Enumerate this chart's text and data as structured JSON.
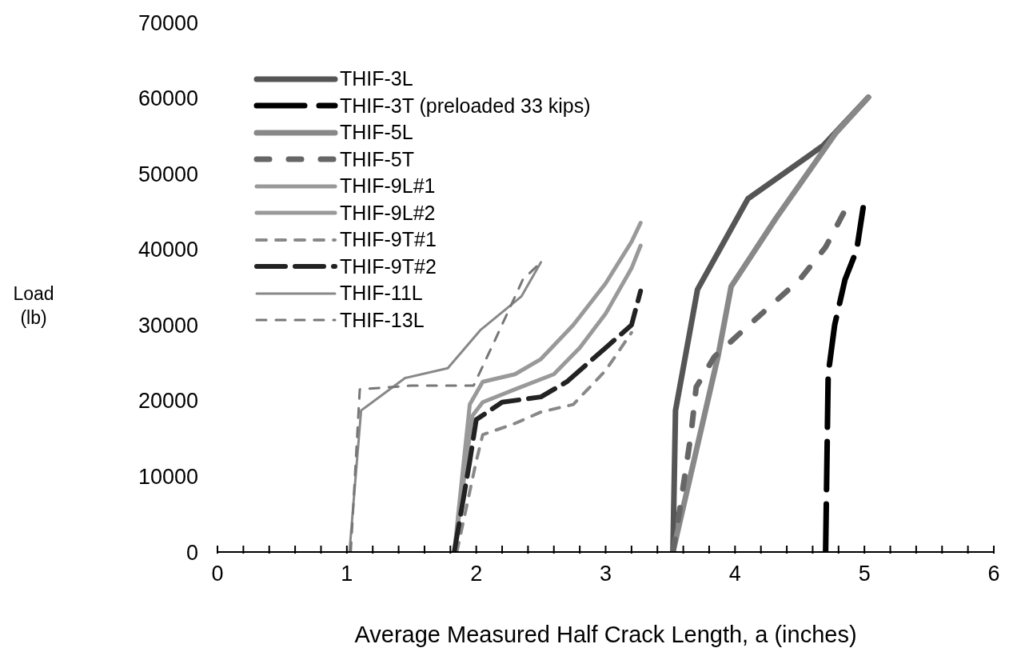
{
  "chart_data": {
    "type": "line",
    "xlabel": "Average Measured Half Crack Length, a (inches)",
    "ylabel": "Load\n(lb)",
    "xlim": [
      0,
      6
    ],
    "xticks": [
      0,
      {
        "value": 0.2,
        "label": null
      },
      {
        "value": 0.4,
        "label": null
      },
      {
        "value": 0.6,
        "label": null
      },
      {
        "value": 0.8,
        "label": null
      },
      1,
      {
        "value": 1.2,
        "label": null
      },
      {
        "value": 1.4,
        "label": null
      },
      {
        "value": 1.6,
        "label": null
      },
      {
        "value": 1.8,
        "label": null
      },
      2,
      {
        "value": 2.2,
        "label": null
      },
      {
        "value": 2.4,
        "label": null
      },
      {
        "value": 2.6,
        "label": null
      },
      {
        "value": 2.8,
        "label": null
      },
      3,
      {
        "value": 3.2,
        "label": null
      },
      {
        "value": 3.4,
        "label": null
      },
      {
        "value": 3.6,
        "label": null
      },
      {
        "value": 3.8,
        "label": null
      },
      4,
      {
        "value": 4.2,
        "label": null
      },
      {
        "value": 4.4,
        "label": null
      },
      {
        "value": 4.6,
        "label": null
      },
      {
        "value": 4.8,
        "label": null
      },
      5,
      {
        "value": 5.2,
        "label": null
      },
      {
        "value": 5.4,
        "label": null
      },
      {
        "value": 5.6,
        "label": null
      },
      {
        "value": 5.8,
        "label": null
      },
      6
    ],
    "ylim": [
      0,
      70000
    ],
    "yticks": [
      0,
      10000,
      20000,
      30000,
      40000,
      50000,
      60000,
      70000
    ],
    "grid": false,
    "legend": "top left",
    "marker": "none",
    "series": [
      {
        "name": "THIF-3L",
        "color": "#555555",
        "line_style": "solid",
        "x": [
          3.52,
          3.54,
          3.71,
          4.1,
          4.68,
          5.03
        ],
        "values": [
          0,
          18700,
          34700,
          46700,
          53700,
          60100
        ]
      },
      {
        "name": "THIF-3T (preloaded 33 kips)",
        "color": "#000000",
        "line_style": "dashed",
        "x": [
          4.7,
          4.72,
          4.77,
          4.85,
          4.94,
          4.99
        ],
        "values": [
          0,
          23500,
          30000,
          36000,
          39900,
          45500
        ]
      },
      {
        "name": "THIF-5L",
        "color": "#888888",
        "line_style": "solid",
        "x": [
          3.52,
          3.87,
          3.97,
          4.32,
          4.78,
          5.03
        ],
        "values": [
          0,
          26000,
          35100,
          44200,
          55400,
          60100
        ]
      },
      {
        "name": "THIF-5T",
        "color": "#666666",
        "line_style": "dashed",
        "x": [
          3.52,
          3.57,
          3.66,
          3.7,
          3.84,
          4.05,
          4.5,
          4.7,
          4.86
        ],
        "values": [
          0,
          5300,
          15600,
          21800,
          25800,
          29100,
          36000,
          40300,
          45500
        ]
      },
      {
        "name": "THIF-9L#1",
        "color": "#999999",
        "line_style": "solid",
        "x": [
          1.83,
          1.95,
          2.05,
          2.3,
          2.5,
          2.75,
          3.0,
          3.2,
          3.27
        ],
        "values": [
          0,
          19500,
          22500,
          23500,
          25500,
          30000,
          35500,
          41000,
          43500
        ]
      },
      {
        "name": "THIF-9L#2",
        "color": "#999999",
        "line_style": "solid",
        "x": [
          1.83,
          1.97,
          2.05,
          2.3,
          2.6,
          2.8,
          3.0,
          3.2,
          3.27
        ],
        "values": [
          0,
          18000,
          19800,
          21500,
          23500,
          27000,
          31500,
          37500,
          40500
        ]
      },
      {
        "name": "THIF-9T#1",
        "color": "#888888",
        "line_style": "dashed",
        "x": [
          1.85,
          2.0,
          2.05,
          2.3,
          2.5,
          2.75,
          3.0,
          3.2
        ],
        "values": [
          0,
          12000,
          15500,
          17000,
          18500,
          19500,
          24000,
          29000
        ]
      },
      {
        "name": "THIF-9T#2",
        "color": "#222222",
        "line_style": "dashed",
        "x": [
          1.83,
          1.95,
          2.0,
          2.2,
          2.5,
          2.7,
          3.0,
          3.2,
          3.27
        ],
        "values": [
          0,
          12000,
          17500,
          19800,
          20500,
          22500,
          27000,
          30000,
          34500
        ]
      },
      {
        "name": "THIF-11L",
        "color": "#888888",
        "line_style": "solid",
        "x": [
          1.02,
          1.11,
          1.45,
          1.78,
          2.03,
          2.35,
          2.5
        ],
        "values": [
          0,
          18700,
          23000,
          24300,
          29300,
          33800,
          38300
        ]
      },
      {
        "name": "THIF-13L",
        "color": "#777777",
        "line_style": "dashed",
        "x": [
          1.03,
          1.1,
          1.5,
          1.85,
          1.98,
          2.15,
          2.36,
          2.5
        ],
        "values": [
          0,
          21500,
          22000,
          22000,
          22000,
          28200,
          36000,
          38300
        ]
      }
    ]
  }
}
